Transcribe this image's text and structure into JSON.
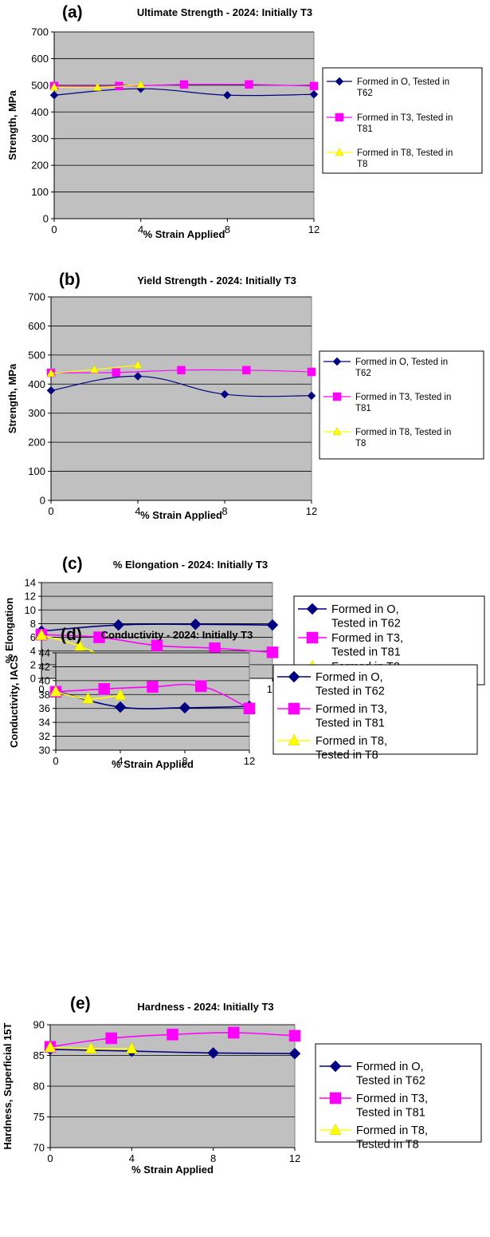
{
  "chart_data": [
    {
      "type": "line",
      "panel": "(a)",
      "title": "Ultimate Strength - 2024: Initially T3",
      "xlabel": "% Strain Applied",
      "ylabel": "Strength, MPa",
      "xlim": [
        0,
        12
      ],
      "ylim": [
        0,
        700
      ],
      "xticks": [
        "0",
        "4",
        "8",
        "12"
      ],
      "yticks": [
        "0",
        "100",
        "200",
        "300",
        "400",
        "500",
        "600",
        "700"
      ],
      "grid": true,
      "legend_position": "right",
      "series": [
        {
          "name": "Formed in O, Tested in T62",
          "color": "#000080",
          "marker": "diamond",
          "x": [
            0,
            4,
            8,
            12
          ],
          "y": [
            463,
            487,
            463,
            466
          ]
        },
        {
          "name": "Formed in T3, Tested in T81",
          "color": "#FF00FF",
          "marker": "square",
          "x": [
            0,
            3,
            6,
            9,
            12
          ],
          "y": [
            497,
            497,
            503,
            503,
            497
          ]
        },
        {
          "name": "Formed in T8, Tested in T8",
          "color": "#FFFF00",
          "marker": "triangle",
          "x": [
            0,
            2,
            4
          ],
          "y": [
            493,
            492,
            502
          ]
        }
      ]
    },
    {
      "type": "line",
      "panel": "(b)",
      "title": "Yield Strength - 2024: Initially T3",
      "xlabel": "% Strain Applied",
      "ylabel": "Strength, MPa",
      "xlim": [
        0,
        12
      ],
      "ylim": [
        0,
        700
      ],
      "xticks": [
        "0",
        "4",
        "8",
        "12"
      ],
      "yticks": [
        "0",
        "100",
        "200",
        "300",
        "400",
        "500",
        "600",
        "700"
      ],
      "grid": true,
      "legend_position": "right",
      "series": [
        {
          "name": "Formed in O, Tested in T62",
          "color": "#000080",
          "marker": "diamond",
          "x": [
            0,
            4,
            8,
            12
          ],
          "y": [
            378,
            427,
            365,
            360
          ]
        },
        {
          "name": "Formed in T3, Tested in T81",
          "color": "#FF00FF",
          "marker": "square",
          "x": [
            0,
            3,
            6,
            9,
            12
          ],
          "y": [
            439,
            440,
            448,
            448,
            442
          ]
        },
        {
          "name": "Formed in T8, Tested in T8",
          "color": "#FFFF00",
          "marker": "triangle",
          "x": [
            0,
            2,
            4
          ],
          "y": [
            437,
            450,
            465
          ]
        }
      ]
    },
    {
      "type": "line",
      "panel": "(c)",
      "title": "% Elongation - 2024: Initially T3",
      "xlabel": "% Strain Applied",
      "ylabel": "% Elongation",
      "xlim": [
        0,
        12
      ],
      "ylim": [
        0,
        14
      ],
      "xticks": [
        "0",
        "4",
        "8",
        "12"
      ],
      "yticks": [
        "0",
        "2",
        "4",
        "6",
        "8",
        "10",
        "12",
        "14"
      ],
      "grid": true,
      "legend_position": "right",
      "series": [
        {
          "name": "Formed in O, Tested in T62",
          "color": "#000080",
          "marker": "diamond",
          "x": [
            0,
            4,
            8,
            12
          ],
          "y": [
            6.9,
            7.8,
            7.9,
            7.8
          ]
        },
        {
          "name": "Formed in T3, Tested in T81",
          "color": "#FF00FF",
          "marker": "square",
          "x": [
            0,
            3,
            6,
            9,
            12
          ],
          "y": [
            6.4,
            6.0,
            4.8,
            4.4,
            3.8
          ]
        },
        {
          "name": "Formed in T8, Tested in T8",
          "color": "#FFFF00",
          "marker": "triangle",
          "x": [
            0,
            2,
            4
          ],
          "y": [
            6.3,
            4.7,
            2.1
          ]
        }
      ]
    },
    {
      "type": "line",
      "panel": "(d)",
      "title": "Conductivity - 2024: Initially T3",
      "xlabel": "% Strain Applied",
      "ylabel": "Conductivity, IACS",
      "xlim": [
        0,
        12
      ],
      "ylim": [
        30,
        44
      ],
      "xticks": [
        "0",
        "4",
        "8",
        "12"
      ],
      "yticks": [
        "30",
        "32",
        "34",
        "36",
        "38",
        "40",
        "42",
        "44"
      ],
      "grid": true,
      "legend_position": "right",
      "series": [
        {
          "name": "Formed in O, Tested in T62",
          "color": "#000080",
          "marker": "diamond",
          "x": [
            0,
            4,
            8,
            12
          ],
          "y": [
            38.5,
            36.2,
            36.1,
            36.3
          ]
        },
        {
          "name": "Formed in T3, Tested in T81",
          "color": "#FF00FF",
          "marker": "square",
          "x": [
            0,
            3,
            6,
            9,
            12
          ],
          "y": [
            38.4,
            38.8,
            39.1,
            39.2,
            36.0
          ]
        },
        {
          "name": "Formed in T8, Tested in T8",
          "color": "#FFFF00",
          "marker": "triangle",
          "x": [
            0,
            2,
            4
          ],
          "y": [
            38.4,
            37.4,
            37.9
          ]
        }
      ]
    },
    {
      "type": "line",
      "panel": "(e)",
      "title": "Hardness - 2024: Initially T3",
      "xlabel": "% Strain Applied",
      "ylabel": "Hardness, Superficial 15T",
      "xlim": [
        0,
        12
      ],
      "ylim": [
        70,
        90
      ],
      "xticks": [
        "0",
        "4",
        "8",
        "12"
      ],
      "yticks": [
        "70",
        "75",
        "80",
        "85",
        "90"
      ],
      "grid": true,
      "legend_position": "right",
      "series": [
        {
          "name": "Formed in O, Tested in T62",
          "color": "#000080",
          "marker": "diamond",
          "x": [
            0,
            4,
            8,
            12
          ],
          "y": [
            86.0,
            85.7,
            85.4,
            85.3
          ]
        },
        {
          "name": "Formed in T3, Tested in T81",
          "color": "#FF00FF",
          "marker": "square",
          "x": [
            0,
            3,
            6,
            9,
            12
          ],
          "y": [
            86.4,
            87.8,
            88.4,
            88.7,
            88.2
          ]
        },
        {
          "name": "Formed in T8, Tested in T8",
          "color": "#FFFF00",
          "marker": "triangle",
          "x": [
            0,
            2,
            4
          ],
          "y": [
            86.3,
            86.1,
            86.1
          ]
        }
      ]
    }
  ]
}
